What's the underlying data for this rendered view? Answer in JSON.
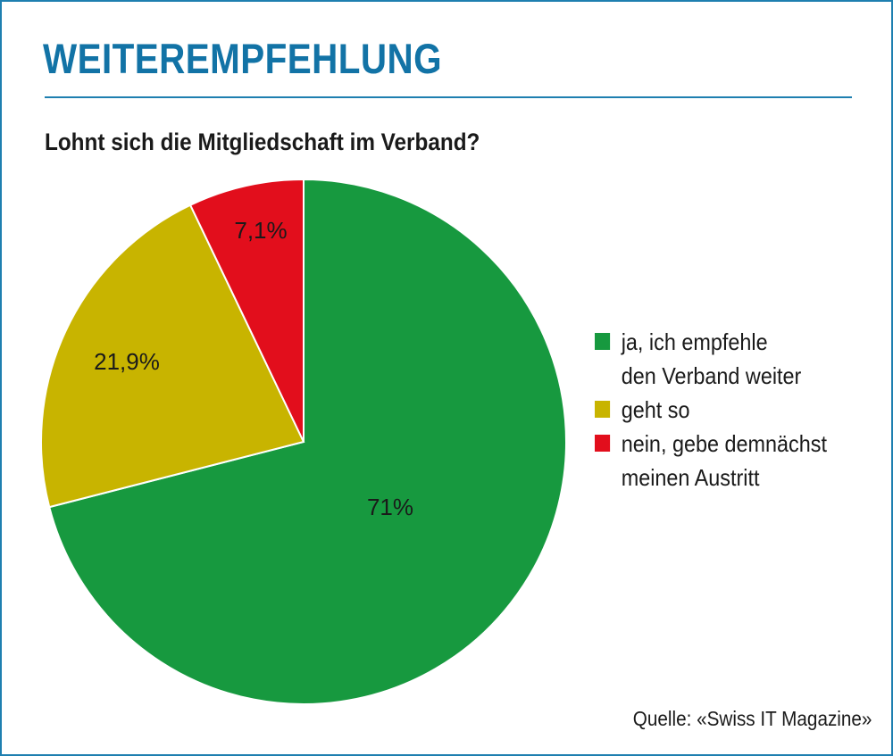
{
  "title": "WEITEREMPFEHLUNG",
  "subtitle": "Lohnt sich die Mitgliedschaft im Verband?",
  "source": "Quelle: «Swiss IT Magazine»",
  "chart_data": {
    "type": "pie",
    "title": "Lohnt sich die Mitgliedschaft im Verband?",
    "legend_position": "right",
    "slices": [
      {
        "name": "ja, ich empfehle den Verband weiter",
        "name_lines": [
          "ja, ich empfehle",
          "den Verband weiter"
        ],
        "value": 71,
        "label": "71%",
        "color": "#17993f"
      },
      {
        "name": "geht so",
        "name_lines": [
          "geht so"
        ],
        "value": 21.9,
        "label": "21,9%",
        "color": "#c8b400"
      },
      {
        "name": "nein, gebe demnächst meinen Austritt",
        "name_lines": [
          "nein, gebe demnächst",
          "meinen Austritt"
        ],
        "value": 7.1,
        "label": "7,1%",
        "color": "#e20e1c"
      }
    ]
  }
}
